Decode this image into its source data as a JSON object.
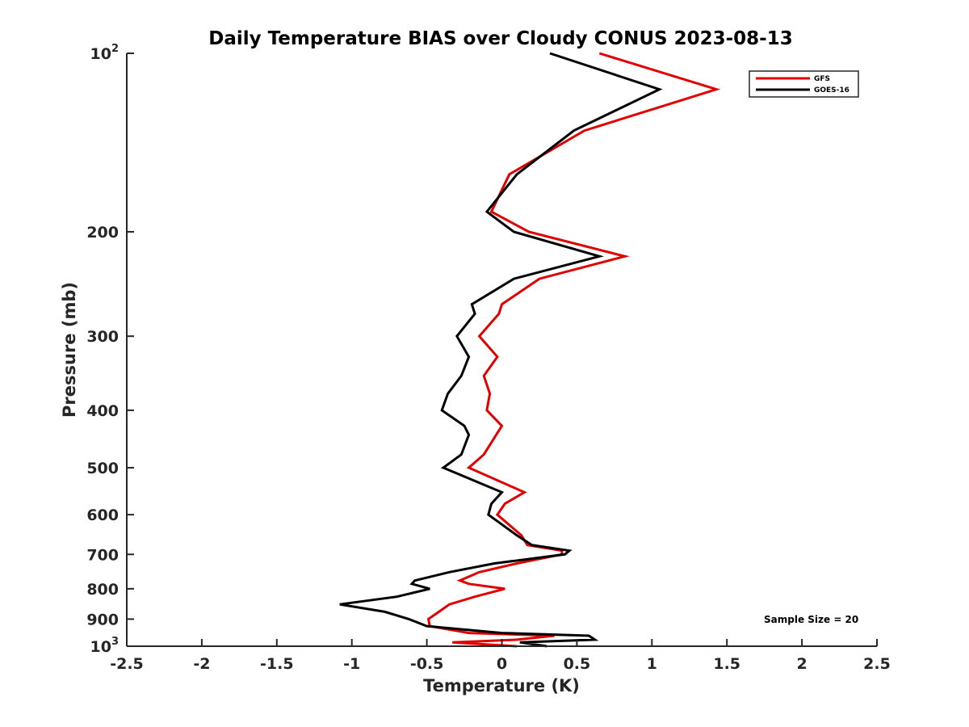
{
  "chart_data": {
    "type": "line",
    "title": "Daily Temperature BIAS over Cloudy CONUS 2023-08-13",
    "xlabel": "Temperature (K)",
    "ylabel": "Pressure (mb)",
    "xlim": [
      -2.5,
      2.5
    ],
    "ylim": [
      100,
      1000
    ],
    "yscale": "log",
    "y_reversed": true,
    "grid": false,
    "legend_position": "top-right",
    "x_ticks": [
      -2.5,
      -2,
      -1.5,
      -1,
      -0.5,
      0,
      0.5,
      1,
      1.5,
      2,
      2.5
    ],
    "x_tick_labels": [
      "-2.5",
      "-2",
      "-1.5",
      "-1",
      "-0.5",
      "0",
      "0.5",
      "1",
      "1.5",
      "2",
      "2.5"
    ],
    "y_ticks": [
      100,
      200,
      300,
      400,
      500,
      600,
      700,
      800,
      900,
      1000
    ],
    "y_tick_labels": [
      {
        "base": "10",
        "exp": "2"
      },
      {
        "base": "200",
        "exp": ""
      },
      {
        "base": "300",
        "exp": ""
      },
      {
        "base": "400",
        "exp": ""
      },
      {
        "base": "500",
        "exp": ""
      },
      {
        "base": "600",
        "exp": ""
      },
      {
        "base": "700",
        "exp": ""
      },
      {
        "base": "800",
        "exp": ""
      },
      {
        "base": "900",
        "exp": ""
      },
      {
        "base": "10",
        "exp": "3"
      }
    ],
    "annotation": "Sample Size = 20",
    "series": [
      {
        "name": "GFS",
        "color": "#e00000",
        "points": [
          [
            0.65,
            100
          ],
          [
            1.43,
            115
          ],
          [
            0.55,
            135
          ],
          [
            0.05,
            160
          ],
          [
            -0.07,
            185
          ],
          [
            0.18,
            200
          ],
          [
            0.82,
            220
          ],
          [
            0.25,
            240
          ],
          [
            0,
            265
          ],
          [
            -0.02,
            275
          ],
          [
            -0.15,
            300
          ],
          [
            -0.03,
            325
          ],
          [
            -0.12,
            350
          ],
          [
            -0.08,
            375
          ],
          [
            -0.1,
            400
          ],
          [
            0,
            425
          ],
          [
            -0.12,
            475
          ],
          [
            -0.22,
            500
          ],
          [
            0.15,
            550
          ],
          [
            0.02,
            575
          ],
          [
            -0.03,
            600
          ],
          [
            0.13,
            650
          ],
          [
            0.17,
            675
          ],
          [
            0.4,
            690
          ],
          [
            0.4,
            700
          ],
          [
            0.1,
            725
          ],
          [
            -0.15,
            750
          ],
          [
            -0.28,
            775
          ],
          [
            -0.22,
            785
          ],
          [
            0.02,
            800
          ],
          [
            -0.18,
            825
          ],
          [
            -0.35,
            850
          ],
          [
            -0.42,
            875
          ],
          [
            -0.49,
            900
          ],
          [
            -0.48,
            925
          ],
          [
            -0.22,
            950
          ],
          [
            0.35,
            960
          ],
          [
            0.1,
            975
          ],
          [
            -0.33,
            985
          ],
          [
            0.1,
            1000
          ]
        ]
      },
      {
        "name": "GOES-16",
        "color": "#000000",
        "points": [
          [
            0.32,
            100
          ],
          [
            1.05,
            115
          ],
          [
            0.48,
            135
          ],
          [
            0.1,
            160
          ],
          [
            -0.1,
            185
          ],
          [
            0.08,
            200
          ],
          [
            0.65,
            220
          ],
          [
            0.08,
            240
          ],
          [
            -0.2,
            265
          ],
          [
            -0.18,
            275
          ],
          [
            -0.3,
            300
          ],
          [
            -0.22,
            325
          ],
          [
            -0.27,
            350
          ],
          [
            -0.36,
            375
          ],
          [
            -0.4,
            400
          ],
          [
            -0.25,
            425
          ],
          [
            -0.22,
            440
          ],
          [
            -0.27,
            475
          ],
          [
            -0.39,
            500
          ],
          [
            0,
            550
          ],
          [
            -0.07,
            575
          ],
          [
            -0.09,
            600
          ],
          [
            0.1,
            650
          ],
          [
            0.2,
            675
          ],
          [
            0.45,
            690
          ],
          [
            0.42,
            700
          ],
          [
            -0.05,
            725
          ],
          [
            -0.35,
            750
          ],
          [
            -0.58,
            775
          ],
          [
            -0.6,
            785
          ],
          [
            -0.48,
            800
          ],
          [
            -0.7,
            825
          ],
          [
            -1.08,
            850
          ],
          [
            -0.78,
            875
          ],
          [
            -0.62,
            900
          ],
          [
            -0.5,
            925
          ],
          [
            0,
            950
          ],
          [
            0.58,
            960
          ],
          [
            0.62,
            975
          ],
          [
            0.12,
            985
          ],
          [
            0.3,
            1000
          ]
        ]
      }
    ]
  }
}
